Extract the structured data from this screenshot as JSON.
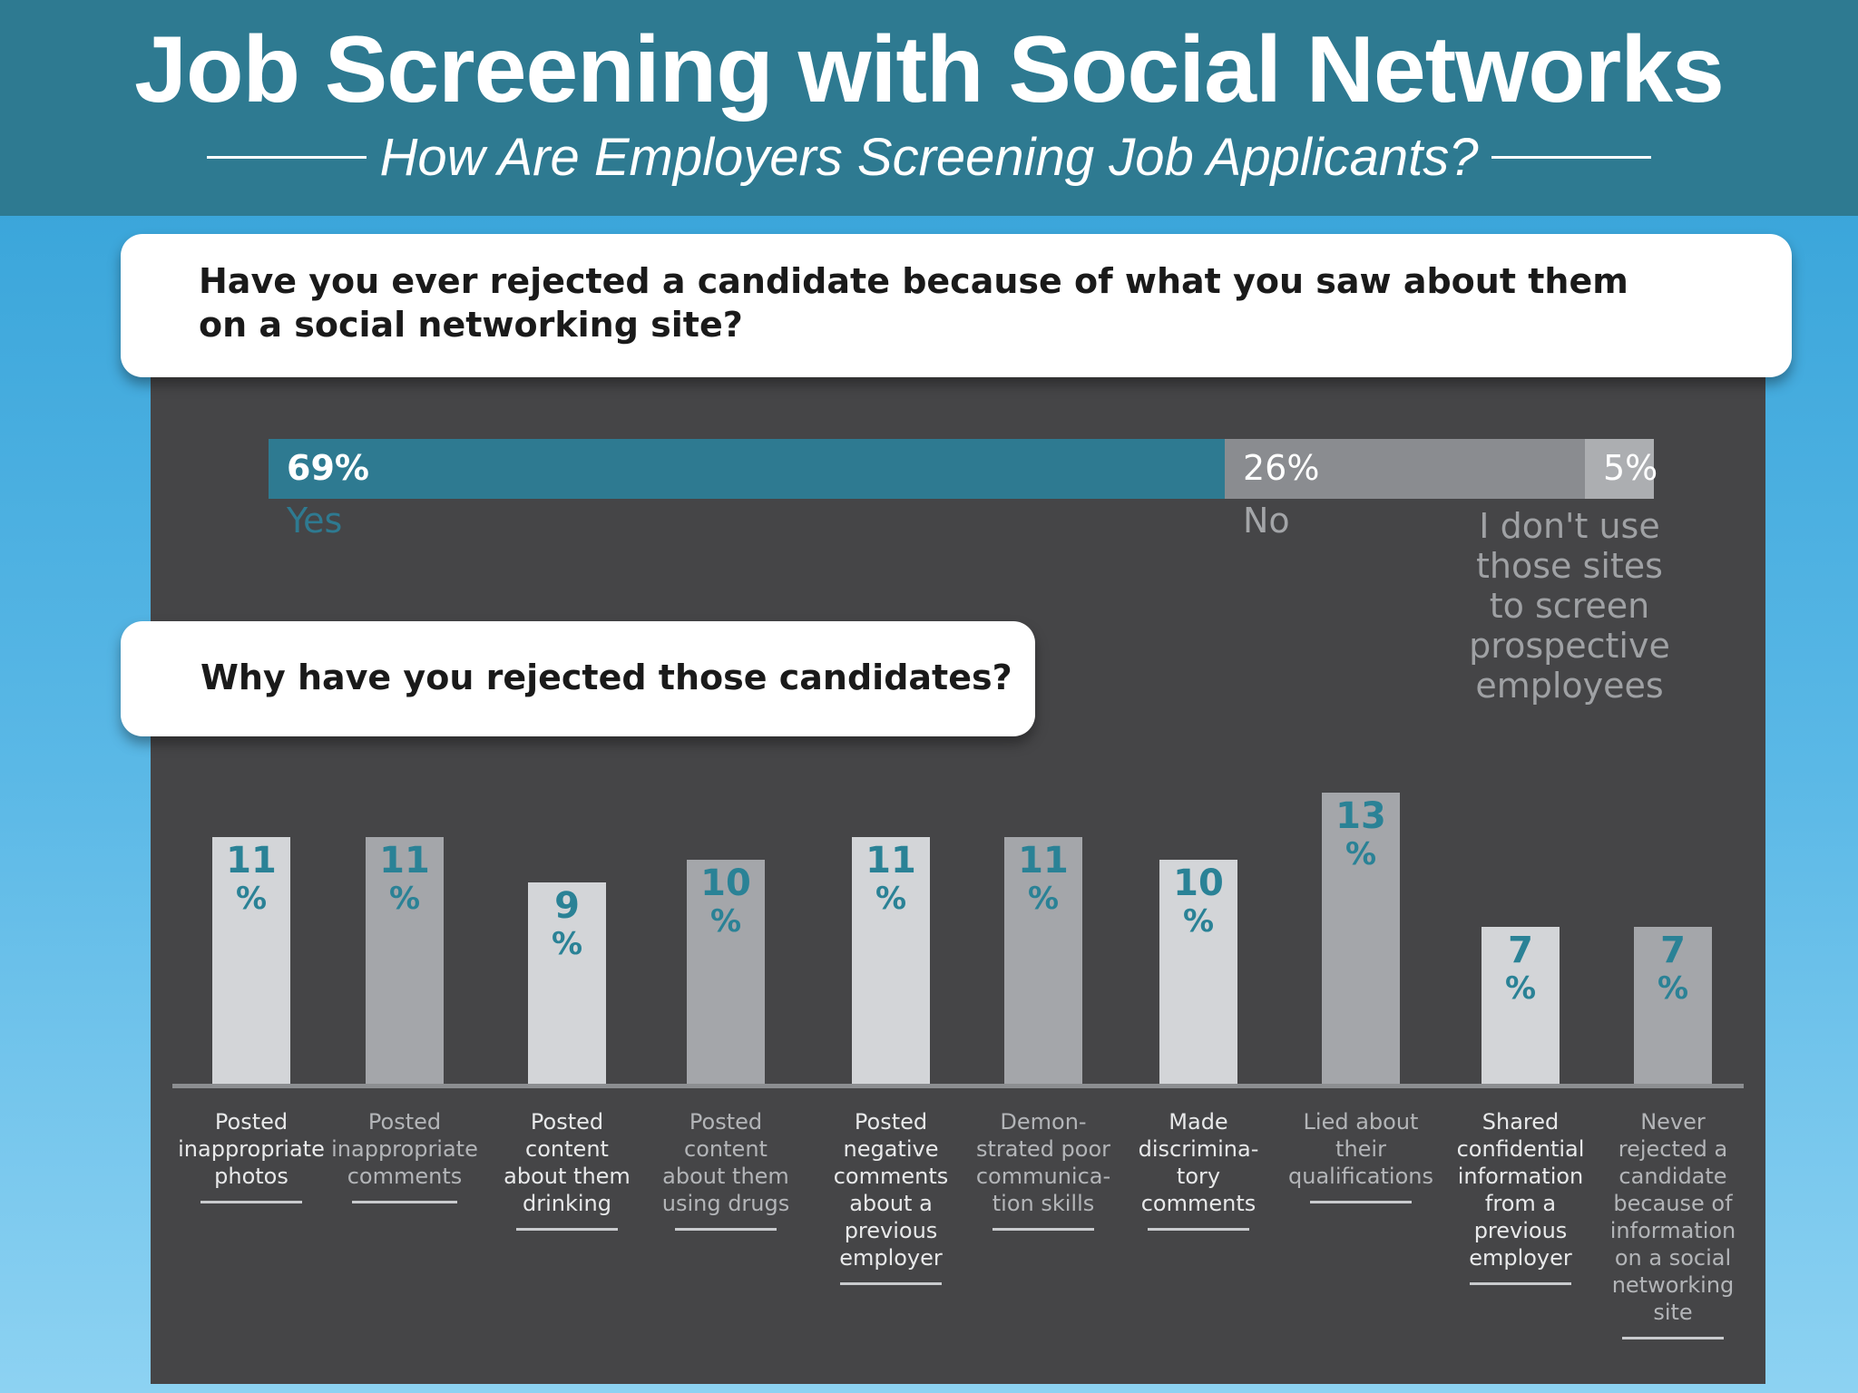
{
  "header": {
    "title": "Job Screening with Social Networks",
    "subtitle": "How Are Employers Screening Job Applicants?"
  },
  "question1": "Have you ever rejected a candidate because of what you saw about them on a social networking site?",
  "question2": "Why have you rejected those candidates?",
  "colors": {
    "teal": "#2e7a91",
    "value_teal": "#2a8296",
    "light_bar": "#d3d5d8",
    "dark_bar": "#a4a6aa",
    "panel": "#454547"
  },
  "chart_data": [
    {
      "type": "bar",
      "orientation": "horizontal-stacked",
      "title": "Have you ever rejected a candidate because of what you saw about them on a social networking site?",
      "categories": [
        "Yes",
        "No",
        "I don't use those sites to screen prospective employees"
      ],
      "values": [
        69,
        26,
        5
      ],
      "value_labels": [
        "69%",
        "26%",
        "5%"
      ],
      "category_labels": [
        "Yes",
        "No",
        "I don't use\nthose sites\nto screen\nprospective\nemployees"
      ]
    },
    {
      "type": "bar",
      "title": "Why have you rejected those candidates?",
      "unit": "%",
      "ylim": [
        0,
        14
      ],
      "categories": [
        "Posted inappropriate photos",
        "Posted inappropriate comments",
        "Posted content about them drinking",
        "Posted content about them using drugs",
        "Posted negative comments about a previous employer",
        "Demon-strated poor communica-tion skills",
        "Made discrimina-tory comments",
        "Lied about their qualifications",
        "Shared confidential information from a previous employer",
        "Never rejected a candidate because of information on a social networking site"
      ],
      "category_labels": [
        "Posted\ninappropriate\nphotos",
        "Posted\ninappropriate\ncomments",
        "Posted\ncontent\nabout them\ndrinking",
        "Posted\ncontent\nabout them\nusing drugs",
        "Posted\nnegative\ncomments\nabout a\nprevious\nemployer",
        "Demon-\nstrated poor\ncommunica-\ntion skills",
        "Made\ndiscrimina-\ntory\ncomments",
        "Lied about\ntheir\nqualifications",
        "Shared\nconfidential\ninformation\nfrom a\nprevious\nemployer",
        "Never\nrejected a\ncandidate\nbecause of\ninformation\non a social\nnetworking\nsite"
      ],
      "values": [
        11,
        11,
        9,
        10,
        11,
        11,
        10,
        13,
        7,
        7
      ],
      "value_labels": [
        "11",
        "11",
        "9",
        "10",
        "11",
        "11",
        "10",
        "13",
        "7",
        "7"
      ],
      "percent_sign": "%"
    }
  ]
}
